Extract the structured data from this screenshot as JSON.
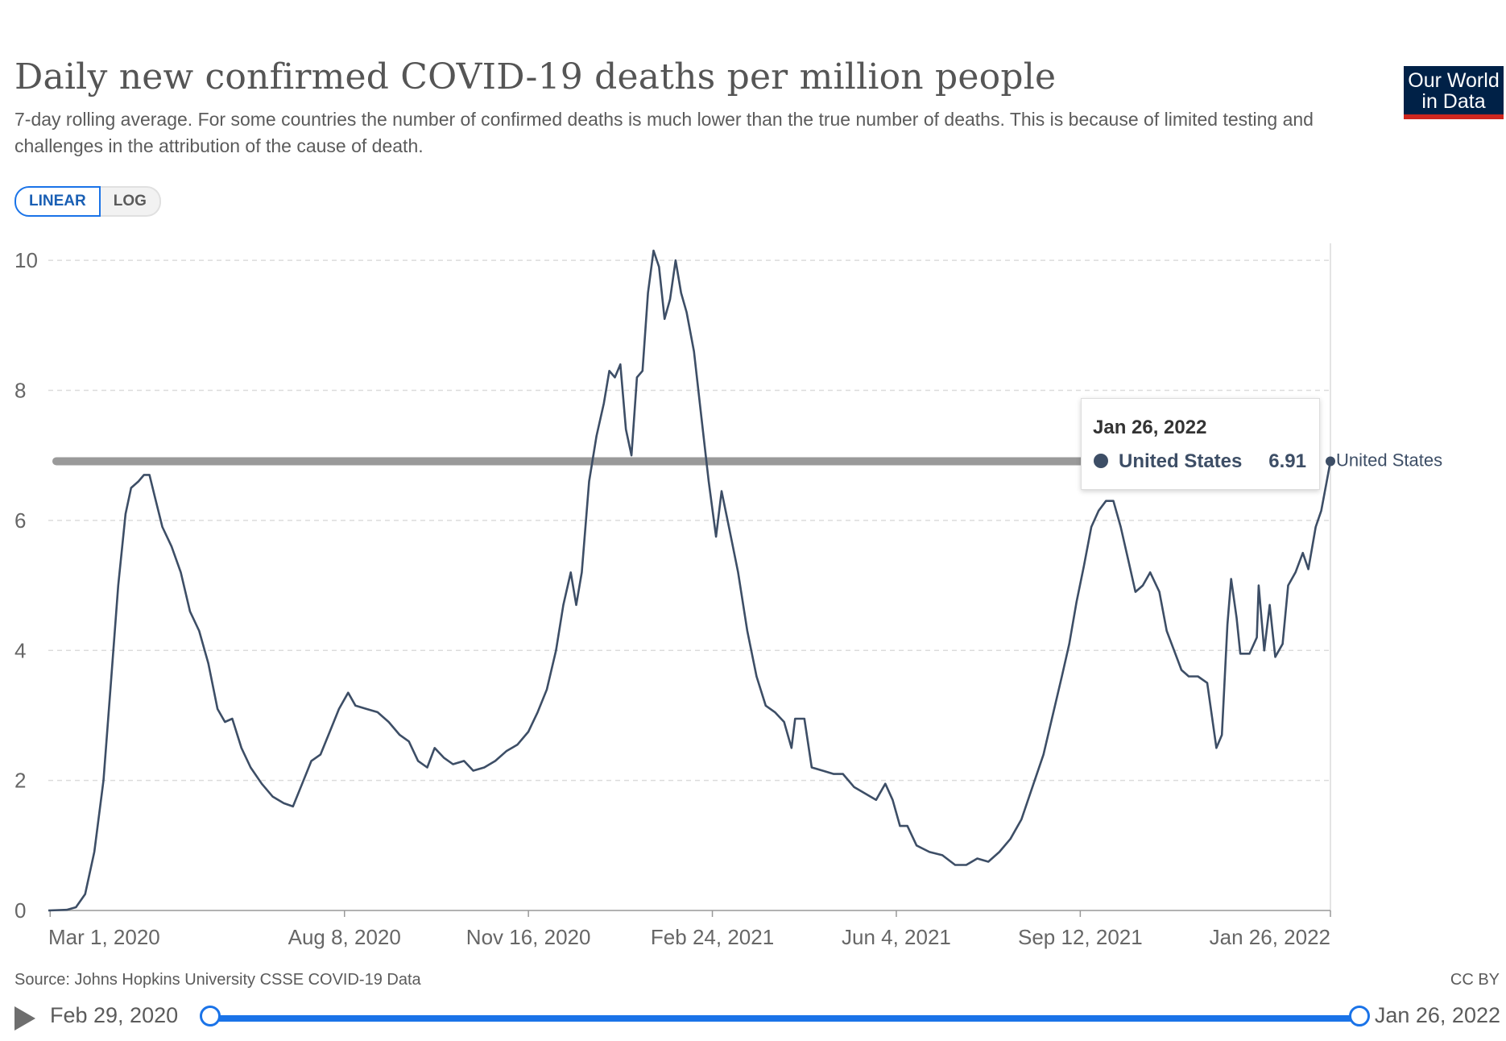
{
  "header": {
    "title": "Daily new confirmed COVID-19 deaths per million people",
    "subtitle": "7-day rolling average. For some countries the number of confirmed deaths is much lower than the true number of deaths. This is because of limited testing and challenges in the attribution of the cause of death.",
    "logo_line1": "Our World",
    "logo_line2": "in Data"
  },
  "scale_toggle": {
    "linear": "LINEAR",
    "log": "LOG",
    "selected": "LINEAR"
  },
  "footer": {
    "source": "Source: Johns Hopkins University CSSE COVID-19 Data",
    "license": "CC BY"
  },
  "timeline": {
    "start": "Feb 29, 2020",
    "end": "Jan 26, 2022"
  },
  "tooltip": {
    "date": "Jan 26, 2022",
    "series": "United States",
    "value": "6.91"
  },
  "colors": {
    "line": "#3d4e66",
    "accent": "#1a73e8",
    "logo_bg": "#002147",
    "logo_bar": "#ce261e"
  },
  "chart_data": {
    "type": "line",
    "title": "Daily new confirmed COVID-19 deaths per million people",
    "ylabel": "",
    "xlabel": "",
    "y_ticks": [
      0,
      2,
      4,
      6,
      8,
      10
    ],
    "ylim": [
      0,
      10.2
    ],
    "x_start": "2020-02-29",
    "x_end": "2022-01-26",
    "x_ticks": [
      {
        "date": "2020-03-01",
        "label": "Mar 1, 2020"
      },
      {
        "date": "2020-08-08",
        "label": "Aug 8, 2020"
      },
      {
        "date": "2020-11-16",
        "label": "Nov 16, 2020"
      },
      {
        "date": "2021-02-24",
        "label": "Feb 24, 2021"
      },
      {
        "date": "2021-06-04",
        "label": "Jun 4, 2021"
      },
      {
        "date": "2021-09-12",
        "label": "Sep 12, 2021"
      },
      {
        "date": "2022-01-26",
        "label": "Jan 26, 2022"
      }
    ],
    "grid": true,
    "series": [
      {
        "name": "United States",
        "points": [
          [
            "2020-02-29",
            0.0
          ],
          [
            "2020-03-10",
            0.01
          ],
          [
            "2020-03-15",
            0.05
          ],
          [
            "2020-03-20",
            0.25
          ],
          [
            "2020-03-25",
            0.9
          ],
          [
            "2020-03-30",
            2.0
          ],
          [
            "2020-04-03",
            3.5
          ],
          [
            "2020-04-07",
            5.0
          ],
          [
            "2020-04-11",
            6.1
          ],
          [
            "2020-04-14",
            6.5
          ],
          [
            "2020-04-18",
            6.6
          ],
          [
            "2020-04-21",
            6.7
          ],
          [
            "2020-04-24",
            6.7
          ],
          [
            "2020-04-27",
            6.35
          ],
          [
            "2020-05-01",
            5.9
          ],
          [
            "2020-05-06",
            5.6
          ],
          [
            "2020-05-11",
            5.2
          ],
          [
            "2020-05-16",
            4.6
          ],
          [
            "2020-05-21",
            4.3
          ],
          [
            "2020-05-26",
            3.8
          ],
          [
            "2020-05-31",
            3.1
          ],
          [
            "2020-06-04",
            2.9
          ],
          [
            "2020-06-08",
            2.95
          ],
          [
            "2020-06-13",
            2.5
          ],
          [
            "2020-06-18",
            2.2
          ],
          [
            "2020-06-24",
            1.95
          ],
          [
            "2020-06-30",
            1.75
          ],
          [
            "2020-07-06",
            1.65
          ],
          [
            "2020-07-11",
            1.6
          ],
          [
            "2020-07-16",
            1.95
          ],
          [
            "2020-07-21",
            2.3
          ],
          [
            "2020-07-26",
            2.4
          ],
          [
            "2020-07-31",
            2.75
          ],
          [
            "2020-08-05",
            3.1
          ],
          [
            "2020-08-10",
            3.35
          ],
          [
            "2020-08-14",
            3.15
          ],
          [
            "2020-08-20",
            3.1
          ],
          [
            "2020-08-26",
            3.05
          ],
          [
            "2020-09-01",
            2.9
          ],
          [
            "2020-09-07",
            2.7
          ],
          [
            "2020-09-12",
            2.6
          ],
          [
            "2020-09-17",
            2.3
          ],
          [
            "2020-09-22",
            2.2
          ],
          [
            "2020-09-26",
            2.5
          ],
          [
            "2020-10-01",
            2.35
          ],
          [
            "2020-10-06",
            2.25
          ],
          [
            "2020-10-12",
            2.3
          ],
          [
            "2020-10-17",
            2.15
          ],
          [
            "2020-10-23",
            2.2
          ],
          [
            "2020-10-29",
            2.3
          ],
          [
            "2020-11-04",
            2.45
          ],
          [
            "2020-11-10",
            2.55
          ],
          [
            "2020-11-16",
            2.75
          ],
          [
            "2020-11-21",
            3.05
          ],
          [
            "2020-11-26",
            3.4
          ],
          [
            "2020-12-01",
            4.0
          ],
          [
            "2020-12-05",
            4.7
          ],
          [
            "2020-12-09",
            5.2
          ],
          [
            "2020-12-12",
            4.7
          ],
          [
            "2020-12-15",
            5.2
          ],
          [
            "2020-12-19",
            6.6
          ],
          [
            "2020-12-23",
            7.3
          ],
          [
            "2020-12-27",
            7.8
          ],
          [
            "2020-12-30",
            8.3
          ],
          [
            "2021-01-02",
            8.2
          ],
          [
            "2021-01-05",
            8.4
          ],
          [
            "2021-01-08",
            7.4
          ],
          [
            "2021-01-11",
            7.0
          ],
          [
            "2021-01-14",
            8.2
          ],
          [
            "2021-01-17",
            8.3
          ],
          [
            "2021-01-20",
            9.5
          ],
          [
            "2021-01-23",
            10.15
          ],
          [
            "2021-01-26",
            9.9
          ],
          [
            "2021-01-29",
            9.1
          ],
          [
            "2021-02-01",
            9.4
          ],
          [
            "2021-02-04",
            10.0
          ],
          [
            "2021-02-07",
            9.5
          ],
          [
            "2021-02-10",
            9.2
          ],
          [
            "2021-02-14",
            8.6
          ],
          [
            "2021-02-18",
            7.6
          ],
          [
            "2021-02-22",
            6.6
          ],
          [
            "2021-02-26",
            5.75
          ],
          [
            "2021-03-01",
            6.45
          ],
          [
            "2021-03-05",
            5.9
          ],
          [
            "2021-03-10",
            5.2
          ],
          [
            "2021-03-15",
            4.3
          ],
          [
            "2021-03-20",
            3.6
          ],
          [
            "2021-03-25",
            3.15
          ],
          [
            "2021-03-30",
            3.05
          ],
          [
            "2021-04-04",
            2.9
          ],
          [
            "2021-04-08",
            2.5
          ],
          [
            "2021-04-10",
            2.95
          ],
          [
            "2021-04-15",
            2.95
          ],
          [
            "2021-04-19",
            2.2
          ],
          [
            "2021-04-25",
            2.15
          ],
          [
            "2021-05-01",
            2.1
          ],
          [
            "2021-05-06",
            2.1
          ],
          [
            "2021-05-12",
            1.9
          ],
          [
            "2021-05-18",
            1.8
          ],
          [
            "2021-05-24",
            1.7
          ],
          [
            "2021-05-29",
            1.95
          ],
          [
            "2021-06-02",
            1.7
          ],
          [
            "2021-06-06",
            1.3
          ],
          [
            "2021-06-10",
            1.3
          ],
          [
            "2021-06-15",
            1.0
          ],
          [
            "2021-06-22",
            0.9
          ],
          [
            "2021-06-29",
            0.85
          ],
          [
            "2021-07-06",
            0.7
          ],
          [
            "2021-07-12",
            0.7
          ],
          [
            "2021-07-18",
            0.8
          ],
          [
            "2021-07-24",
            0.75
          ],
          [
            "2021-07-30",
            0.9
          ],
          [
            "2021-08-05",
            1.1
          ],
          [
            "2021-08-11",
            1.4
          ],
          [
            "2021-08-17",
            1.9
          ],
          [
            "2021-08-23",
            2.4
          ],
          [
            "2021-08-28",
            3.0
          ],
          [
            "2021-09-02",
            3.6
          ],
          [
            "2021-09-06",
            4.1
          ],
          [
            "2021-09-10",
            4.75
          ],
          [
            "2021-09-14",
            5.3
          ],
          [
            "2021-09-18",
            5.9
          ],
          [
            "2021-09-22",
            6.15
          ],
          [
            "2021-09-26",
            6.3
          ],
          [
            "2021-09-30",
            6.3
          ],
          [
            "2021-10-04",
            5.9
          ],
          [
            "2021-10-08",
            5.4
          ],
          [
            "2021-10-12",
            4.9
          ],
          [
            "2021-10-16",
            5.0
          ],
          [
            "2021-10-20",
            5.2
          ],
          [
            "2021-10-25",
            4.9
          ],
          [
            "2021-10-29",
            4.3
          ],
          [
            "2021-11-02",
            4.0
          ],
          [
            "2021-11-06",
            3.7
          ],
          [
            "2021-11-10",
            3.6
          ],
          [
            "2021-11-15",
            3.6
          ],
          [
            "2021-11-20",
            3.5
          ],
          [
            "2021-11-25",
            2.5
          ],
          [
            "2021-11-28",
            2.7
          ],
          [
            "2021-12-01",
            4.4
          ],
          [
            "2021-12-03",
            5.1
          ],
          [
            "2021-12-06",
            4.5
          ],
          [
            "2021-12-08",
            3.95
          ],
          [
            "2021-12-13",
            3.95
          ],
          [
            "2021-12-17",
            4.2
          ],
          [
            "2021-12-18",
            5.0
          ],
          [
            "2021-12-21",
            4.0
          ],
          [
            "2021-12-24",
            4.7
          ],
          [
            "2021-12-27",
            3.9
          ],
          [
            "2021-12-31",
            4.1
          ],
          [
            "2022-01-03",
            5.0
          ],
          [
            "2022-01-07",
            5.2
          ],
          [
            "2022-01-11",
            5.5
          ],
          [
            "2022-01-14",
            5.25
          ],
          [
            "2022-01-18",
            5.9
          ],
          [
            "2022-01-21",
            6.15
          ],
          [
            "2022-01-24",
            6.6
          ],
          [
            "2022-01-26",
            6.91
          ]
        ]
      }
    ],
    "end_label": "United States",
    "hover_date": "2022-01-26",
    "hover_value": 6.91
  }
}
